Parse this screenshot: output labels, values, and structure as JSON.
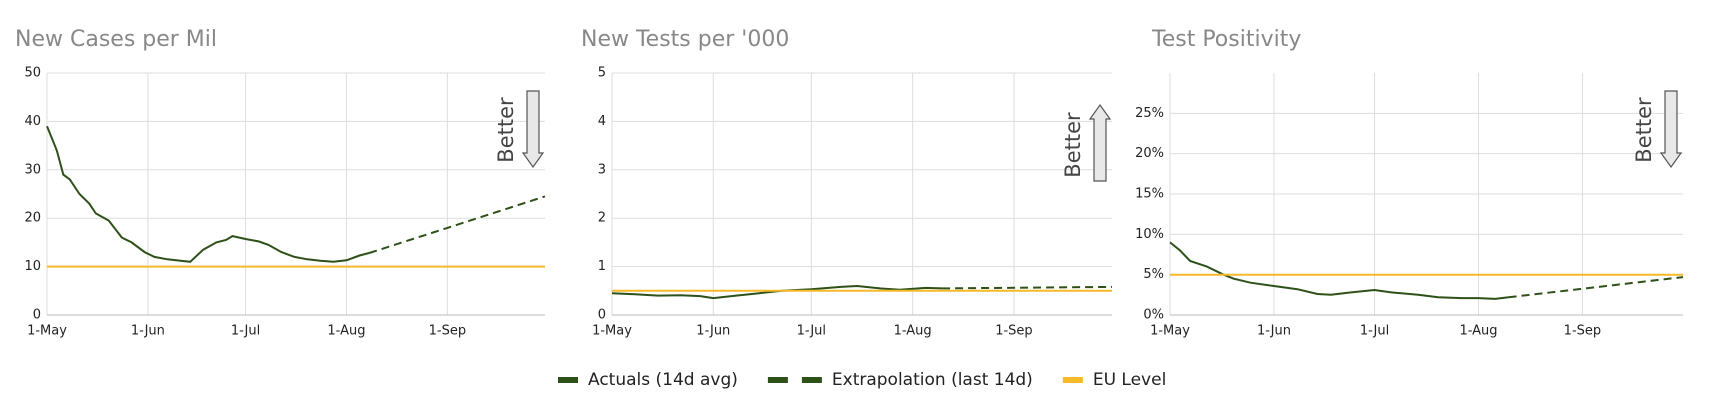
{
  "chart_data": [
    {
      "type": "line",
      "title": "New Cases per Mil",
      "annotation": "Better",
      "arrow": "down",
      "xlim": [
        "1-May",
        "1-Oct"
      ],
      "xticks": [
        "1-May",
        "1-Jun",
        "1-Jul",
        "1-Aug",
        "1-Sep"
      ],
      "ylim": [
        0,
        50
      ],
      "yticks": [
        0,
        10,
        20,
        30,
        40,
        50
      ],
      "grid": true,
      "series": [
        {
          "name": "Actuals (14d avg)",
          "color": "#2d5119",
          "dash": false,
          "x": [
            "1-May",
            "4-May",
            "6-May",
            "8-May",
            "11-May",
            "14-May",
            "16-May",
            "20-May",
            "24-May",
            "27-May",
            "31-May",
            "3-Jun",
            "7-Jun",
            "11-Jun",
            "14-Jun",
            "18-Jun",
            "22-Jun",
            "25-Jun",
            "27-Jun",
            "1-Jul",
            "5-Jul",
            "8-Jul",
            "12-Jul",
            "16-Jul",
            "20-Jul",
            "24-Jul",
            "28-Jul",
            "1-Aug",
            "5-Aug",
            "8-Aug"
          ],
          "values": [
            39,
            34,
            29,
            28,
            25,
            23,
            21,
            19.5,
            16,
            15,
            13,
            12,
            11.5,
            11.2,
            11,
            13.5,
            15,
            15.5,
            16.3,
            15.7,
            15.2,
            14.5,
            13,
            12,
            11.5,
            11.2,
            11,
            11.3,
            12.3,
            12.8
          ]
        },
        {
          "name": "Extrapolation (last 14d)",
          "color": "#2d5119",
          "dash": true,
          "x": [
            "8-Aug",
            "1-Sep",
            "1-Oct"
          ],
          "values": [
            12.8,
            18,
            24.5
          ]
        },
        {
          "name": "EU Level",
          "color": "#f7b928",
          "dash": false,
          "x": [
            "1-May",
            "1-Oct"
          ],
          "values": [
            10,
            10
          ]
        }
      ]
    },
    {
      "type": "line",
      "title": "New Tests per '000",
      "annotation": "Better",
      "arrow": "up",
      "xlim": [
        "1-May",
        "1-Oct"
      ],
      "xticks": [
        "1-May",
        "1-Jun",
        "1-Jul",
        "1-Aug",
        "1-Sep"
      ],
      "ylim": [
        0,
        5
      ],
      "yticks": [
        0,
        1,
        2,
        3,
        4,
        5
      ],
      "grid": true,
      "series": [
        {
          "name": "Actuals (14d avg)",
          "color": "#2d5119",
          "dash": false,
          "x": [
            "1-May",
            "8-May",
            "15-May",
            "22-May",
            "28-May",
            "1-Jun",
            "8-Jun",
            "15-Jun",
            "22-Jun",
            "1-Jul",
            "10-Jul",
            "15-Jul",
            "22-Jul",
            "28-Jul",
            "5-Aug",
            "10-Aug"
          ],
          "values": [
            0.45,
            0.43,
            0.4,
            0.41,
            0.39,
            0.35,
            0.4,
            0.45,
            0.5,
            0.53,
            0.58,
            0.6,
            0.55,
            0.52,
            0.56,
            0.55
          ]
        },
        {
          "name": "Extrapolation (last 14d)",
          "color": "#2d5119",
          "dash": true,
          "x": [
            "10-Aug",
            "1-Oct"
          ],
          "values": [
            0.55,
            0.58
          ]
        },
        {
          "name": "EU Level",
          "color": "#f7b928",
          "dash": false,
          "x": [
            "1-May",
            "1-Oct"
          ],
          "values": [
            0.5,
            0.5
          ]
        }
      ]
    },
    {
      "type": "line",
      "title": "Test Positivity",
      "annotation": "Better",
      "arrow": "down",
      "xlim": [
        "1-May",
        "1-Oct"
      ],
      "xticks": [
        "1-May",
        "1-Jun",
        "1-Jul",
        "1-Aug",
        "1-Sep"
      ],
      "ylim": [
        0,
        30
      ],
      "yticks": [
        {
          "value": 0,
          "label": "0%"
        },
        {
          "value": 5,
          "label": "5%"
        },
        {
          "value": 10,
          "label": "10%"
        },
        {
          "value": 15,
          "label": "15%"
        },
        {
          "value": 20,
          "label": "20%"
        },
        {
          "value": 25,
          "label": "25%"
        }
      ],
      "grid": true,
      "series": [
        {
          "name": "Actuals (14d avg)",
          "color": "#2d5119",
          "dash": false,
          "x": [
            "1-May",
            "4-May",
            "7-May",
            "12-May",
            "17-May",
            "20-May",
            "25-May",
            "1-Jun",
            "8-Jun",
            "14-Jun",
            "18-Jun",
            "24-Jun",
            "1-Jul",
            "6-Jul",
            "14-Jul",
            "20-Jul",
            "27-Jul",
            "1-Aug",
            "6-Aug",
            "10-Aug"
          ],
          "values": [
            9,
            8,
            6.7,
            6,
            5,
            4.5,
            4,
            3.6,
            3.2,
            2.6,
            2.5,
            2.8,
            3.1,
            2.8,
            2.5,
            2.2,
            2.1,
            2.1,
            2,
            2.2
          ]
        },
        {
          "name": "Extrapolation (last 14d)",
          "color": "#2d5119",
          "dash": true,
          "x": [
            "10-Aug",
            "1-Oct"
          ],
          "values": [
            2.2,
            4.7
          ]
        },
        {
          "name": "EU Level",
          "color": "#f7b928",
          "dash": false,
          "x": [
            "1-May",
            "1-Oct"
          ],
          "values": [
            5,
            5
          ]
        }
      ]
    }
  ]
}
